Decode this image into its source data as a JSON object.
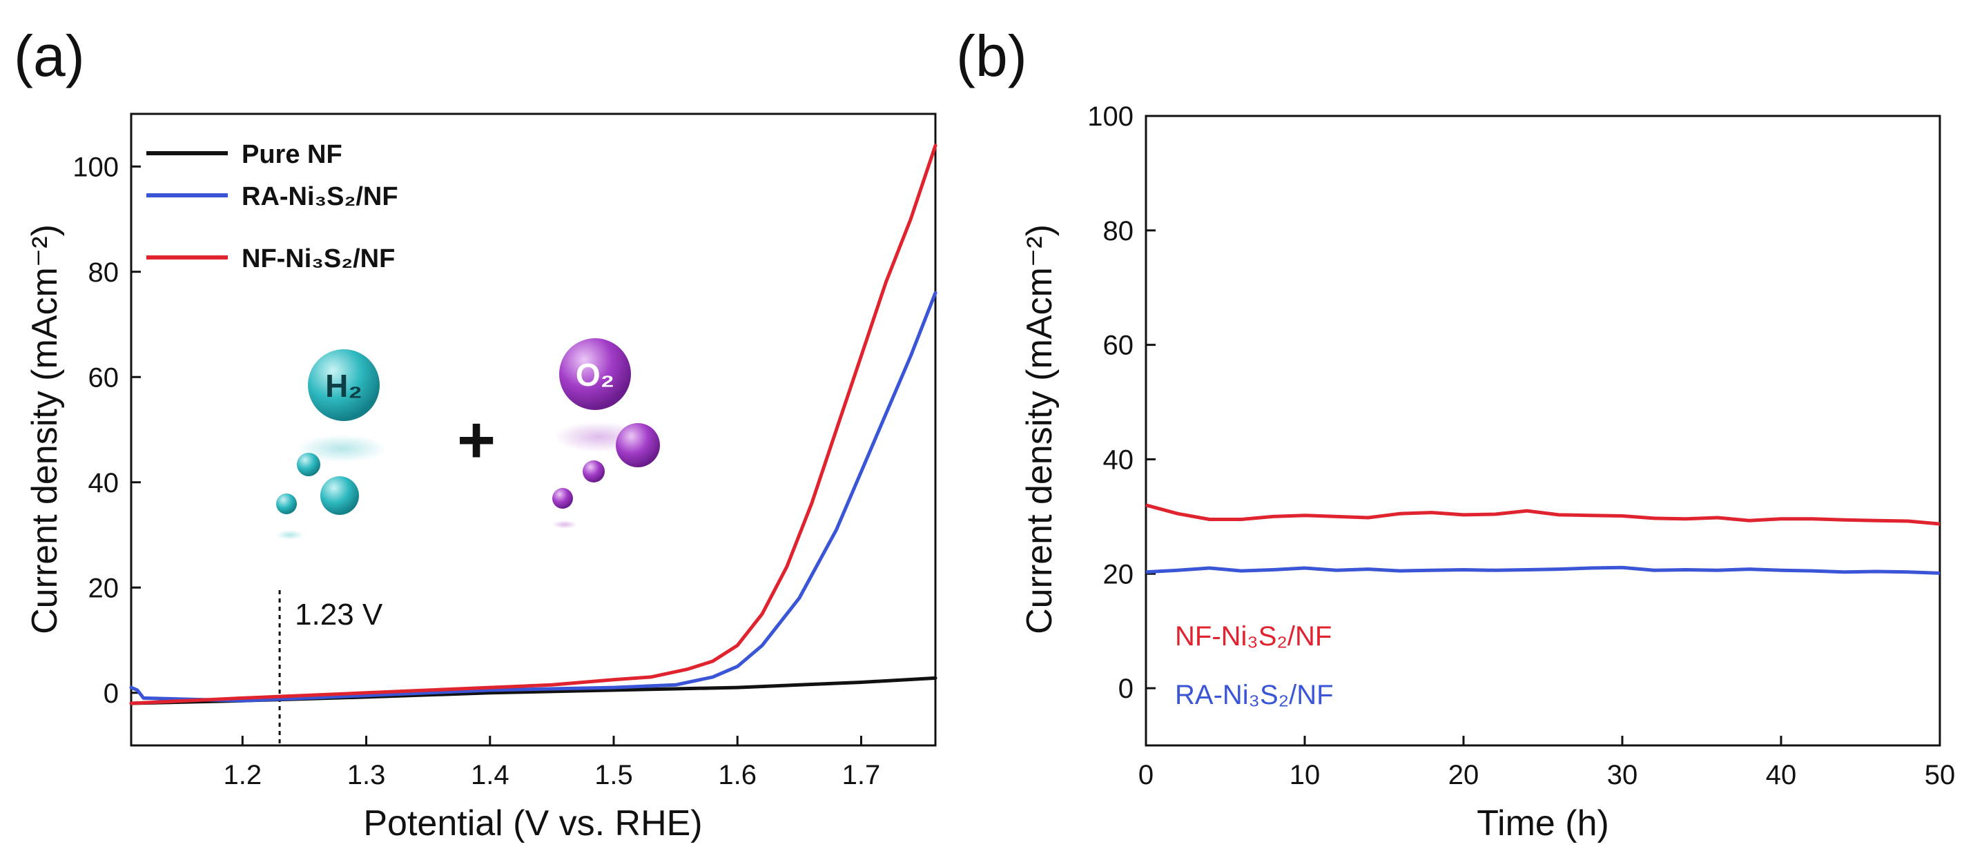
{
  "figure": {
    "panels": [
      "(a)",
      "(b)"
    ],
    "colors": {
      "black": "#111111",
      "blue": "#3a55d6",
      "red": "#e0242f",
      "h2": "#2fb9c0",
      "o2": "#a13cc7"
    }
  },
  "chart_data": [
    {
      "type": "line",
      "panel": "(a)",
      "xlabel": "Potential (V vs. RHE)",
      "ylabel": "Current density (mAcm⁻²)",
      "xlim": [
        1.11,
        1.76
      ],
      "ylim": [
        -10,
        110
      ],
      "xticks": [
        1.2,
        1.3,
        1.4,
        1.5,
        1.6,
        1.7
      ],
      "yticks": [
        0,
        20,
        40,
        60,
        80,
        100
      ],
      "series": [
        {
          "name": "Pure NF",
          "color": "#111111",
          "x": [
            1.11,
            1.2,
            1.3,
            1.4,
            1.5,
            1.6,
            1.7,
            1.76
          ],
          "y": [
            -2,
            -1.5,
            -0.8,
            0,
            0.5,
            1,
            2,
            2.8
          ]
        },
        {
          "name": "RA-Ni₃S₂/NF",
          "color": "#3a55d6",
          "x": [
            1.11,
            1.115,
            1.12,
            1.2,
            1.3,
            1.4,
            1.5,
            1.55,
            1.58,
            1.6,
            1.62,
            1.65,
            1.68,
            1.7,
            1.72,
            1.74,
            1.76
          ],
          "y": [
            1,
            0.5,
            -1,
            -1.5,
            -0.5,
            0.5,
            1,
            1.5,
            3,
            5,
            9,
            18,
            31,
            42,
            53,
            64,
            76
          ]
        },
        {
          "name": "NF-Ni₃S₂/NF",
          "color": "#e0242f",
          "x": [
            1.11,
            1.2,
            1.3,
            1.4,
            1.45,
            1.5,
            1.53,
            1.56,
            1.58,
            1.6,
            1.62,
            1.64,
            1.66,
            1.68,
            1.7,
            1.72,
            1.74,
            1.76
          ],
          "y": [
            -2,
            -1,
            0,
            1,
            1.5,
            2.5,
            3,
            4.5,
            6,
            9,
            15,
            24,
            36,
            50,
            64,
            78,
            90,
            104
          ]
        }
      ],
      "legend": [
        "Pure NF",
        "RA-Ni₃S₂/NF",
        "NF-Ni₃S₂/NF"
      ],
      "legend_position": "top-left",
      "reference_line": {
        "x": 1.23,
        "label": "1.23 V"
      },
      "inset": {
        "h2_label": "H₂",
        "o2_label": "O₂",
        "plus": "+"
      }
    },
    {
      "type": "line",
      "panel": "(b)",
      "xlabel": "Time (h)",
      "ylabel": "Current density (mAcm⁻²)",
      "xlim": [
        0,
        50
      ],
      "ylim": [
        -10,
        100
      ],
      "xticks": [
        0,
        10,
        20,
        30,
        40,
        50
      ],
      "yticks": [
        0,
        20,
        40,
        60,
        80,
        100
      ],
      "series": [
        {
          "name": "NF-Ni₃S₂/NF",
          "color": "#e0242f",
          "x": [
            0,
            2,
            4,
            6,
            8,
            10,
            12,
            14,
            16,
            18,
            20,
            22,
            24,
            26,
            28,
            30,
            32,
            34,
            36,
            38,
            40,
            42,
            44,
            46,
            48,
            50
          ],
          "y": [
            32,
            30.5,
            29.5,
            29.5,
            30,
            30.2,
            30,
            29.8,
            30.5,
            30.7,
            30.3,
            30.4,
            31,
            30.3,
            30.2,
            30.1,
            29.7,
            29.6,
            29.8,
            29.3,
            29.6,
            29.6,
            29.4,
            29.3,
            29.2,
            28.7
          ]
        },
        {
          "name": "RA-Ni₃S₂/NF",
          "color": "#3a55d6",
          "x": [
            0,
            2,
            4,
            6,
            8,
            10,
            12,
            14,
            16,
            18,
            20,
            22,
            24,
            26,
            28,
            30,
            32,
            34,
            36,
            38,
            40,
            42,
            44,
            46,
            48,
            50
          ],
          "y": [
            20.3,
            20.6,
            21,
            20.5,
            20.7,
            21,
            20.6,
            20.8,
            20.5,
            20.6,
            20.7,
            20.6,
            20.7,
            20.8,
            21,
            21.1,
            20.6,
            20.7,
            20.6,
            20.8,
            20.6,
            20.5,
            20.3,
            20.4,
            20.3,
            20.1
          ]
        }
      ],
      "legend": [
        "NF-Ni₃S₂/NF",
        "RA-Ni₃S₂/NF"
      ],
      "legend_position": "bottom-left"
    }
  ]
}
